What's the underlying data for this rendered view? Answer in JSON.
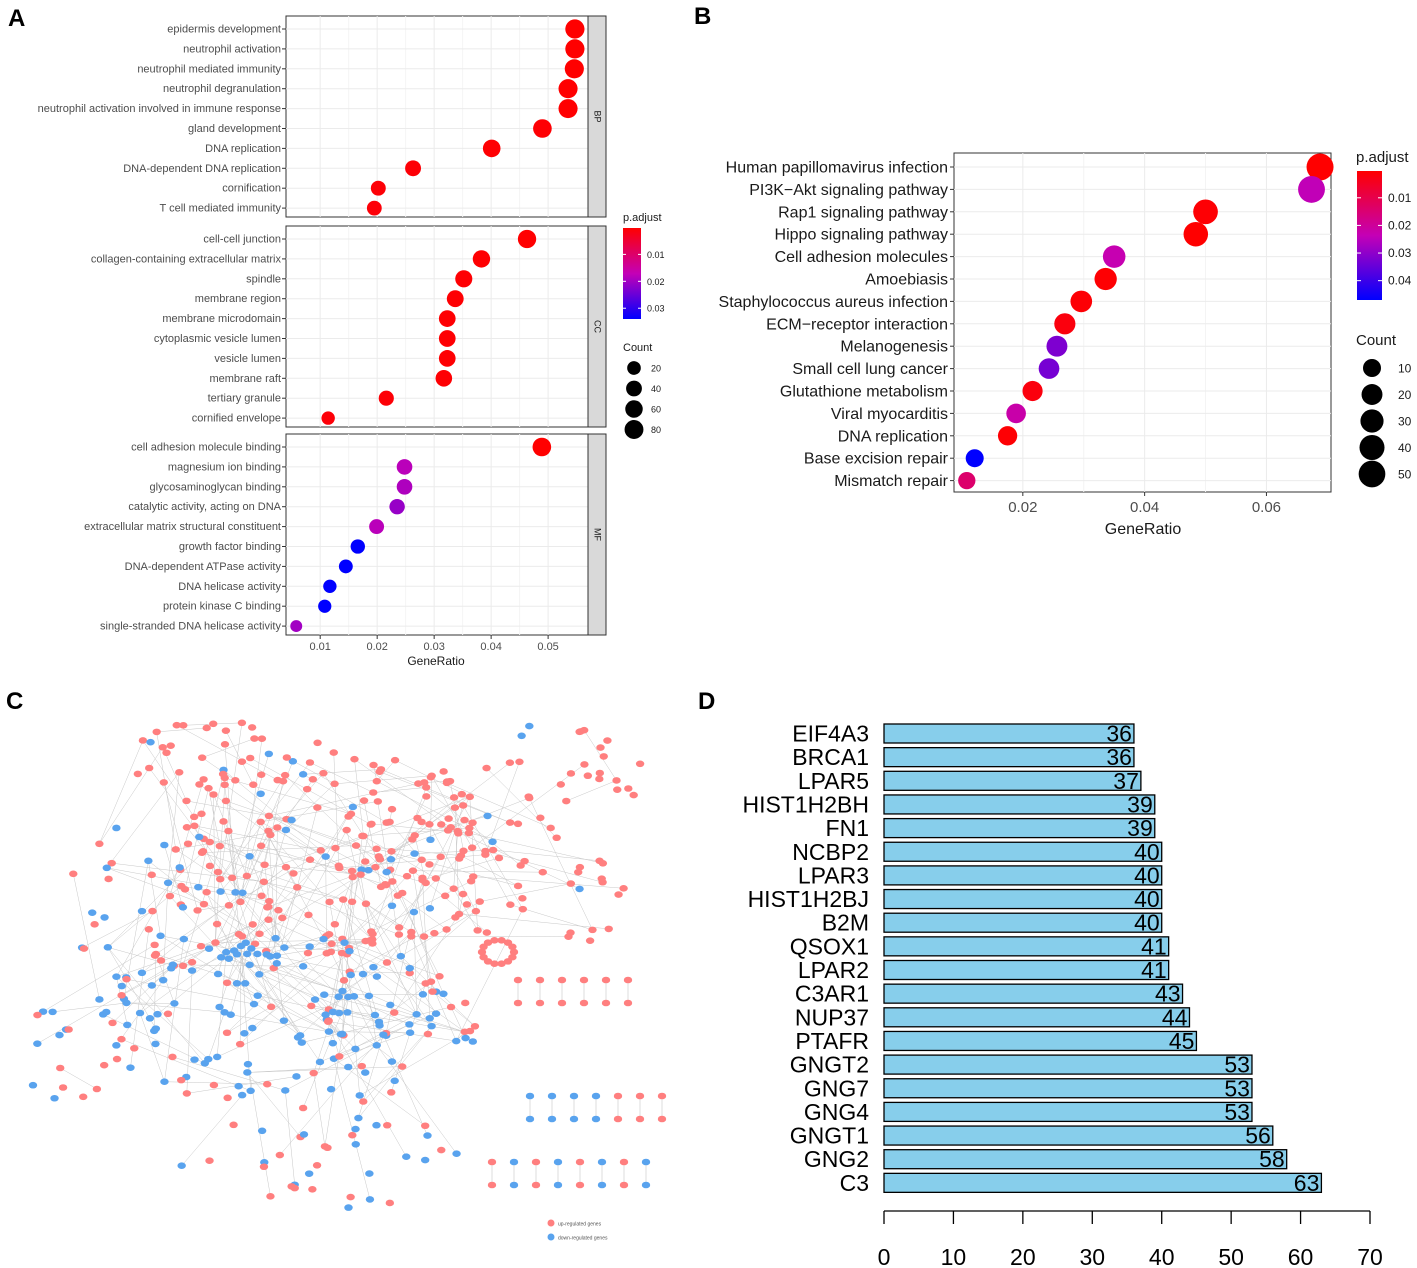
{
  "panels": {
    "a": "A",
    "b": "B",
    "c": "C",
    "d": "D"
  },
  "colors": {
    "low": "#ff0000",
    "mid": "#c400b6",
    "high": "#0000ff",
    "grid": "#ebebeb",
    "strip": "#d9d9d9",
    "bar": "#87ceeb",
    "net_up": "#ff7f7f",
    "net_down": "#59a3ee"
  },
  "chart_data": [
    {
      "type": "scatter",
      "panel": "A",
      "xlabel": "GeneRatio",
      "xlim": [
        0.004,
        0.057
      ],
      "xticks": [
        0.01,
        0.02,
        0.03,
        0.04,
        0.05
      ],
      "facets": [
        {
          "name": "BP",
          "terms": [
            {
              "term": "epidermis development",
              "ratio": 0.0547,
              "count": 85,
              "padj": 0.0002
            },
            {
              "term": "neutrophil activation",
              "ratio": 0.0547,
              "count": 85,
              "padj": 0.0002
            },
            {
              "term": "neutrophil mediated immunity",
              "ratio": 0.0546,
              "count": 84,
              "padj": 0.0002
            },
            {
              "term": "neutrophil degranulation",
              "ratio": 0.0535,
              "count": 83,
              "padj": 0.0003
            },
            {
              "term": "neutrophil activation involved in immune response",
              "ratio": 0.0535,
              "count": 83,
              "padj": 0.0003
            },
            {
              "term": "gland development",
              "ratio": 0.049,
              "count": 76,
              "padj": 0.0006
            },
            {
              "term": "DNA replication",
              "ratio": 0.0401,
              "count": 62,
              "padj": 0.0005
            },
            {
              "term": "DNA-dependent DNA replication",
              "ratio": 0.0263,
              "count": 41,
              "padj": 0.0008
            },
            {
              "term": "cornification",
              "ratio": 0.0202,
              "count": 31,
              "padj": 0.0008
            },
            {
              "term": "T cell mediated immunity",
              "ratio": 0.0195,
              "count": 30,
              "padj": 0.0009
            }
          ]
        },
        {
          "name": "CC",
          "terms": [
            {
              "term": "cell-cell junction",
              "ratio": 0.0463,
              "count": 72,
              "padj": 0.0003
            },
            {
              "term": "collagen-containing extracellular matrix",
              "ratio": 0.0383,
              "count": 59,
              "padj": 0.0004
            },
            {
              "term": "spindle",
              "ratio": 0.0352,
              "count": 55,
              "padj": 0.0005
            },
            {
              "term": "membrane region",
              "ratio": 0.0337,
              "count": 52,
              "padj": 0.0005
            },
            {
              "term": "membrane microdomain",
              "ratio": 0.0323,
              "count": 50,
              "padj": 0.0005
            },
            {
              "term": "cytoplasmic vesicle lumen",
              "ratio": 0.0323,
              "count": 50,
              "padj": 0.0005
            },
            {
              "term": "vesicle lumen",
              "ratio": 0.0323,
              "count": 50,
              "padj": 0.0005
            },
            {
              "term": "membrane raft",
              "ratio": 0.0317,
              "count": 49,
              "padj": 0.0005
            },
            {
              "term": "tertiary granule",
              "ratio": 0.0216,
              "count": 33,
              "padj": 0.0008
            },
            {
              "term": "cornified envelope",
              "ratio": 0.0114,
              "count": 18,
              "padj": 0.0009
            }
          ]
        },
        {
          "name": "MF",
          "terms": [
            {
              "term": "cell adhesion molecule binding",
              "ratio": 0.0489,
              "count": 76,
              "padj": 0.0002
            },
            {
              "term": "magnesium ion binding",
              "ratio": 0.0248,
              "count": 38,
              "padj": 0.018
            },
            {
              "term": "glycosaminoglycan binding",
              "ratio": 0.0248,
              "count": 38,
              "padj": 0.019
            },
            {
              "term": "catalytic activity, acting on DNA",
              "ratio": 0.0235,
              "count": 36,
              "padj": 0.021
            },
            {
              "term": "extracellular matrix structural constituent",
              "ratio": 0.0199,
              "count": 31,
              "padj": 0.018
            },
            {
              "term": "growth factor binding",
              "ratio": 0.0166,
              "count": 26,
              "padj": 0.034
            },
            {
              "term": "DNA-dependent ATPase activity",
              "ratio": 0.0145,
              "count": 22,
              "padj": 0.034
            },
            {
              "term": "DNA helicase activity",
              "ratio": 0.0117,
              "count": 18,
              "padj": 0.034
            },
            {
              "term": "protein kinase C binding",
              "ratio": 0.0108,
              "count": 17,
              "padj": 0.034
            },
            {
              "term": "single-stranded DNA helicase activity",
              "ratio": 0.0058,
              "count": 9,
              "padj": 0.02
            }
          ]
        }
      ],
      "legend": {
        "padj_title": "p.adjust",
        "padj_ticks": [
          0.01,
          0.02,
          0.03
        ],
        "padj_range": [
          0.0002,
          0.034
        ],
        "count_title": "Count",
        "count_ticks": [
          20,
          40,
          60,
          80
        ]
      }
    },
    {
      "type": "scatter",
      "panel": "B",
      "xlabel": "GeneRatio",
      "xlim": [
        0.0087,
        0.0706
      ],
      "xticks": [
        0.02,
        0.04,
        0.06
      ],
      "terms": [
        {
          "term": "Human papillomavirus infection",
          "ratio": 0.0688,
          "count": 52,
          "padj": 0.0003
        },
        {
          "term": "PI3K−Akt signaling pathway",
          "ratio": 0.0674,
          "count": 51,
          "padj": 0.024
        },
        {
          "term": "Rap1 signaling pathway",
          "ratio": 0.05,
          "count": 38,
          "padj": 0.0008
        },
        {
          "term": "Hippo signaling pathway",
          "ratio": 0.0484,
          "count": 37,
          "padj": 0.0003
        },
        {
          "term": "Cell adhesion molecules",
          "ratio": 0.035,
          "count": 27,
          "padj": 0.023
        },
        {
          "term": "Amoebiasis",
          "ratio": 0.0336,
          "count": 26,
          "padj": 0.0007
        },
        {
          "term": "Staphylococcus aureus infection",
          "ratio": 0.0296,
          "count": 23,
          "padj": 0.001
        },
        {
          "term": "ECM−receptor interaction",
          "ratio": 0.0269,
          "count": 21,
          "padj": 0.002
        },
        {
          "term": "Melanogenesis",
          "ratio": 0.0256,
          "count": 20,
          "padj": 0.032
        },
        {
          "term": "Small cell lung cancer",
          "ratio": 0.0243,
          "count": 19,
          "padj": 0.033
        },
        {
          "term": "Glutathione metabolism",
          "ratio": 0.0216,
          "count": 17,
          "padj": 0.002
        },
        {
          "term": "Viral myocarditis",
          "ratio": 0.0189,
          "count": 15,
          "padj": 0.022
        },
        {
          "term": "DNA replication",
          "ratio": 0.0175,
          "count": 14,
          "padj": 0.0008
        },
        {
          "term": "Base excision repair",
          "ratio": 0.0121,
          "count": 10,
          "padj": 0.047
        },
        {
          "term": "Mismatch repair",
          "ratio": 0.0108,
          "count": 8,
          "padj": 0.014
        }
      ],
      "legend": {
        "padj_title": "p.adjust",
        "padj_ticks": [
          0.01,
          0.02,
          0.03,
          0.04
        ],
        "padj_range": [
          0.0003,
          0.047
        ],
        "count_title": "Count",
        "count_ticks": [
          10,
          20,
          30,
          40,
          50
        ]
      }
    },
    {
      "type": "bar",
      "panel": "D",
      "orientation": "horizontal",
      "categories": [
        "EIF4A3",
        "BRCA1",
        "LPAR5",
        "HIST1H2BH",
        "FN1",
        "NCBP2",
        "LPAR3",
        "HIST1H2BJ",
        "B2M",
        "QSOX1",
        "LPAR2",
        "C3AR1",
        "NUP37",
        "PTAFR",
        "GNGT2",
        "GNG7",
        "GNG4",
        "GNGT1",
        "GNG2",
        "C3"
      ],
      "values": [
        36,
        36,
        37,
        39,
        39,
        40,
        40,
        40,
        40,
        41,
        41,
        43,
        44,
        45,
        53,
        53,
        53,
        56,
        58,
        63
      ],
      "xlim": [
        0,
        70
      ],
      "xticks": [
        0,
        10,
        20,
        30,
        40,
        50,
        60,
        70
      ]
    }
  ],
  "network": {
    "legend": [
      "up-regulated genes",
      "down-regulated genes"
    ]
  }
}
